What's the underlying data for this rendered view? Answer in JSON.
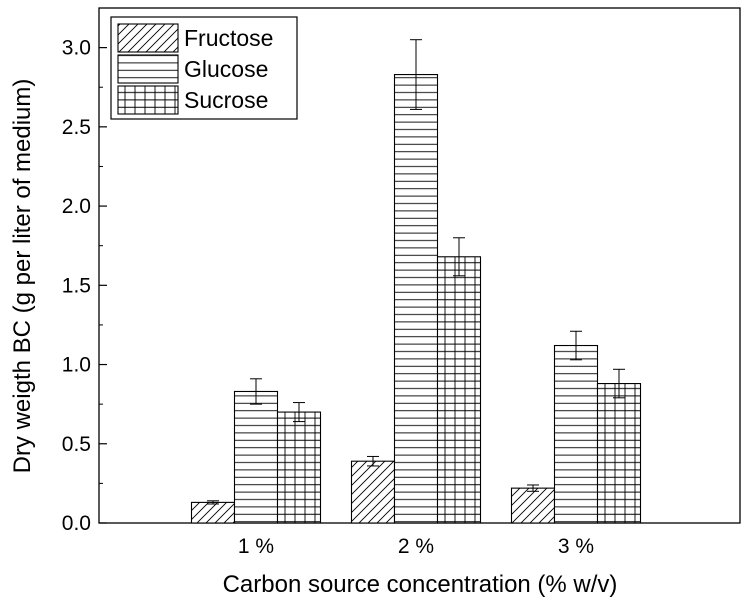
{
  "chart_data": {
    "type": "bar",
    "title": "",
    "xlabel": "Carbon source concentration (% w/v)",
    "ylabel": "Dry weigth BC (g per liter of medium)",
    "categories": [
      "1 %",
      "2 %",
      "3 %"
    ],
    "ylim": [
      0,
      3.25
    ],
    "yticks": [
      0.0,
      0.5,
      1.0,
      1.5,
      2.0,
      2.5,
      3.0
    ],
    "ytick_labels": [
      "0.0",
      "0.5",
      "1.0",
      "1.5",
      "2.0",
      "2.5",
      "3.0"
    ],
    "grid": false,
    "legend_position": "top-left",
    "series": [
      {
        "name": "Fructose",
        "pattern": "diagonal-hatch",
        "values": [
          0.13,
          0.39,
          0.22
        ],
        "errors": [
          0.01,
          0.03,
          0.02
        ]
      },
      {
        "name": "Glucose",
        "pattern": "horizontal-lines",
        "values": [
          0.83,
          2.83,
          1.12
        ],
        "errors": [
          0.08,
          0.22,
          0.09
        ]
      },
      {
        "name": "Sucrose",
        "pattern": "grid",
        "values": [
          0.7,
          1.68,
          0.88
        ],
        "errors": [
          0.06,
          0.12,
          0.09
        ]
      }
    ]
  }
}
